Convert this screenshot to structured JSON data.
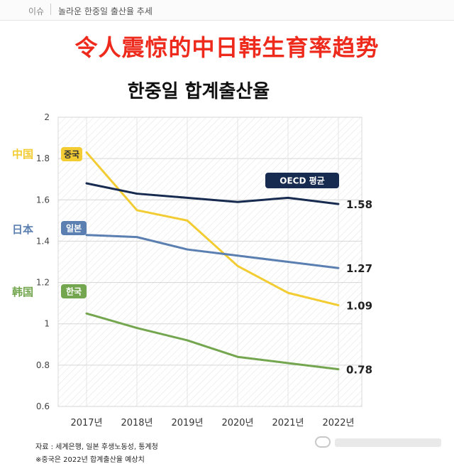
{
  "topbar": {
    "crumb": "이슈",
    "issue": "놀라운 한중일 출산율 추세"
  },
  "banner": "令人震惊的中日韩生育率趋势",
  "colors": {
    "china": "#f2cc32",
    "japan": "#5a7fb0",
    "korea": "#73a64e",
    "oecd": "#172a4f",
    "banner": "#ee2a1c"
  },
  "side_labels": {
    "china": "中国",
    "japan": "日本",
    "korea": "韩国"
  },
  "chart_data": {
    "type": "line",
    "title": "한중일 합계출산율",
    "xlabel": "",
    "ylabel": "",
    "categories": [
      "2017년",
      "2018년",
      "2019년",
      "2020년",
      "2021년",
      "2022년"
    ],
    "y_ticks": [
      "2",
      "1.8",
      "1.6",
      "1.4",
      "1.2",
      "1",
      "0.8",
      "0.6"
    ],
    "ylim": [
      0.6,
      2.0
    ],
    "grid": "diagonal hatch background",
    "series": [
      {
        "key": "china",
        "name": "중국",
        "values": [
          1.83,
          1.55,
          1.5,
          1.28,
          1.15,
          1.09
        ],
        "end_label": "1.09"
      },
      {
        "key": "japan",
        "name": "일본",
        "values": [
          1.43,
          1.42,
          1.36,
          1.33,
          1.3,
          1.27
        ],
        "end_label": "1.27"
      },
      {
        "key": "korea",
        "name": "한국",
        "values": [
          1.05,
          0.98,
          0.92,
          0.84,
          0.81,
          0.78
        ],
        "end_label": "0.78"
      },
      {
        "key": "oecd",
        "name": "OECD 평균",
        "values": [
          1.68,
          1.63,
          1.61,
          1.59,
          1.61,
          1.58
        ],
        "end_label": "1.58"
      }
    ]
  },
  "footer": {
    "source": "자료 : 세계은행, 일본 후생노동성, 통계청",
    "note": "※중국은 2022년 합계출산율 예상치"
  }
}
